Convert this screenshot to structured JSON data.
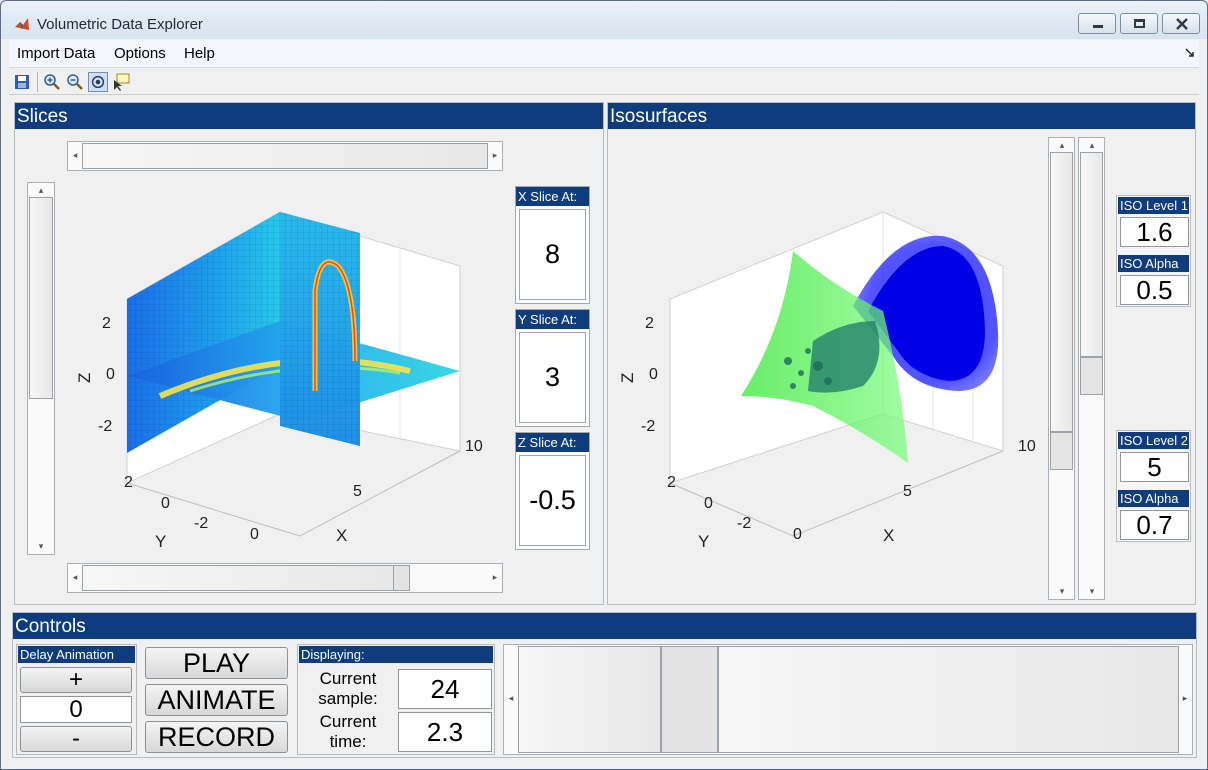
{
  "window": {
    "title": "Volumetric Data Explorer"
  },
  "menu": {
    "items": [
      "Import Data",
      "Options",
      "Help"
    ],
    "overflow_icon": "dock-arrow-icon"
  },
  "toolbar": {
    "icons": [
      "save-icon",
      "zoom-in-icon",
      "zoom-out-icon",
      "rotate-3d-icon",
      "data-cursor-icon"
    ]
  },
  "slices": {
    "title": "Slices",
    "x_label": "X Slice At:",
    "x_value": "8",
    "y_label": "Y Slice At:",
    "y_value": "3",
    "z_label": "Z Slice At:",
    "z_value": "-0.5",
    "axes": {
      "z_ticks": [
        "2",
        "0",
        "-2"
      ],
      "zlabel": "Z",
      "y_ticks": [
        "2",
        "0",
        "-2"
      ],
      "ylabel": "Y",
      "x_ticks": [
        "0",
        "5",
        "10"
      ],
      "xlabel": "X"
    }
  },
  "iso": {
    "title": "Isosurfaces",
    "level1_label": "ISO Level 1",
    "level1_value": "1.6",
    "alpha1_label": "ISO Alpha 1",
    "alpha1_value": "0.5",
    "level2_label": "ISO Level 2",
    "level2_value": "5",
    "alpha2_label": "ISO Alpha 2",
    "alpha2_value": "0.7",
    "surface_colors": {
      "level1": "#33ff33",
      "level2": "#0000ff"
    },
    "axes": {
      "z_ticks": [
        "2",
        "0",
        "-2"
      ],
      "zlabel": "Z",
      "y_ticks": [
        "2",
        "0",
        "-2"
      ],
      "ylabel": "Y",
      "x_ticks": [
        "0",
        "5",
        "10"
      ],
      "xlabel": "X"
    }
  },
  "controls": {
    "title": "Controls",
    "delay_label": "Delay Animation",
    "plus": "+",
    "minus": "-",
    "delay_value": "0",
    "play": "PLAY",
    "animate": "ANIMATE",
    "record": "RECORD",
    "displaying_label": "Displaying:",
    "sample_label_1": "Current",
    "sample_label_2": "sample:",
    "sample_value": "24",
    "time_label_1": "Current",
    "time_label_2": "time:",
    "time_value": "2.3"
  },
  "colors": {
    "panel_header": "#0e3c7c",
    "accent": "#0e3c7c"
  }
}
